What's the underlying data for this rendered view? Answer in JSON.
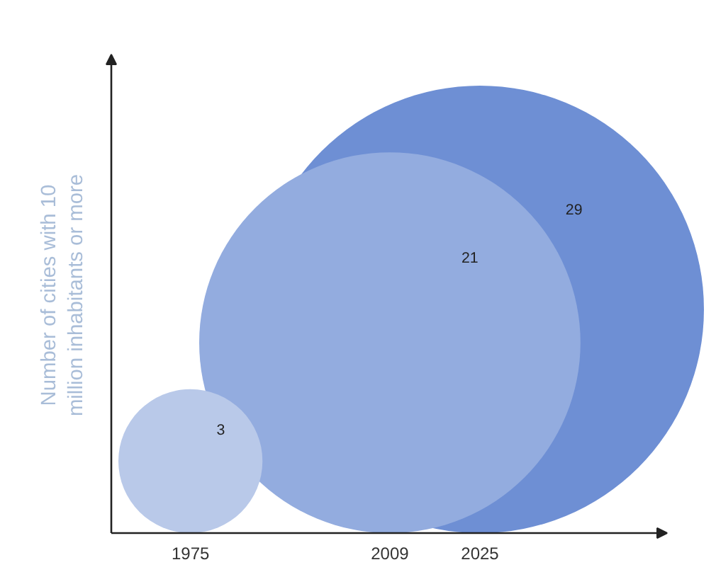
{
  "chart_data": {
    "type": "other",
    "ylabel": "Number of cities with 10 million inhabitants or more",
    "categories": [
      "1975",
      "2009",
      "2025"
    ],
    "values": [
      3,
      21,
      29
    ],
    "colors": [
      "#b9c9e9",
      "#93acdf",
      "#6e8fd4"
    ],
    "data_labels": true
  }
}
